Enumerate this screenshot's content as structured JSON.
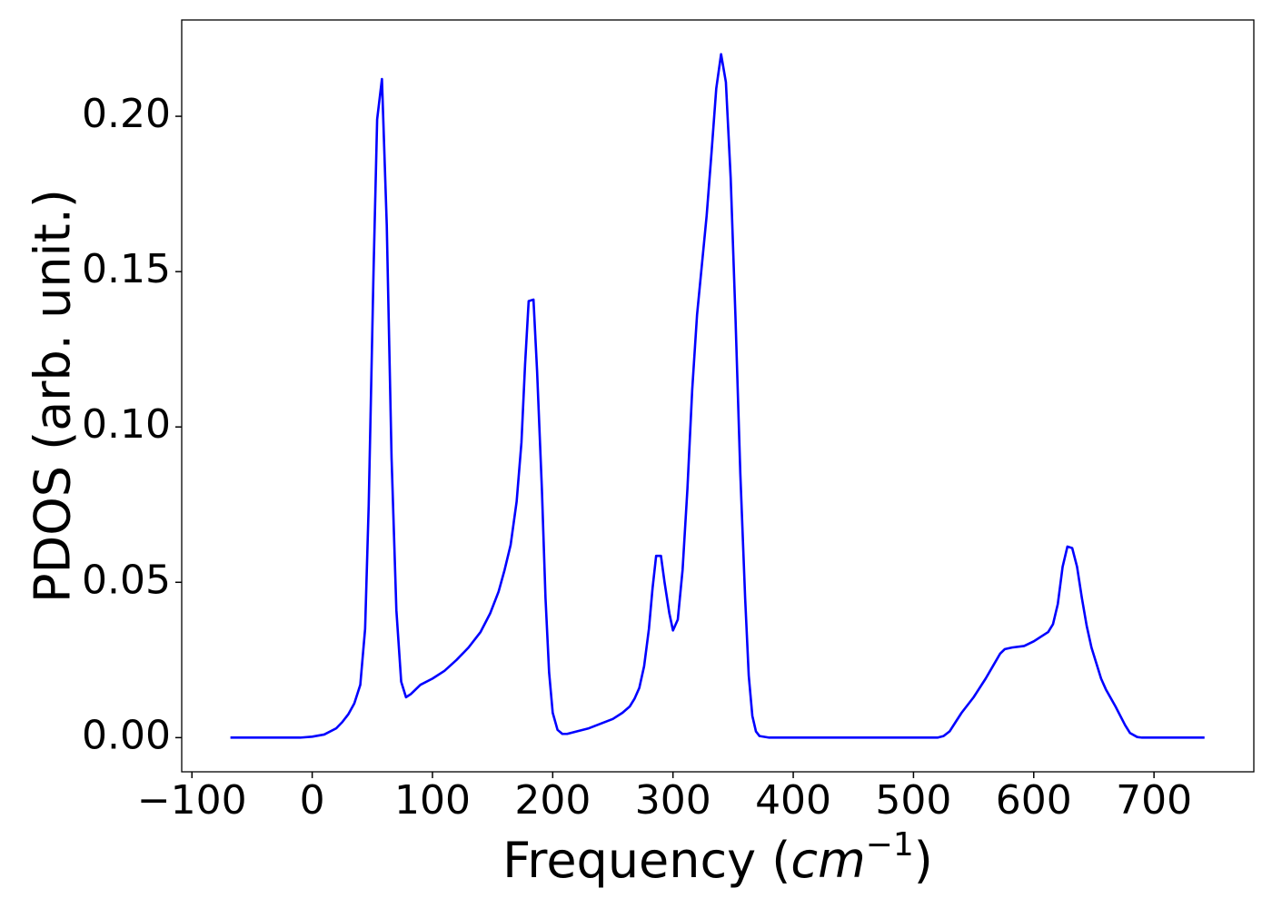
{
  "chart_data": {
    "type": "line",
    "y_label": "PDOS (arb. unit.)",
    "x_label": [
      "Frequency (",
      "cm",
      "−1",
      ")"
    ],
    "x": [
      -68,
      -40,
      -10,
      0,
      10,
      20,
      25,
      30,
      35,
      40,
      44,
      47,
      51,
      54,
      58,
      62,
      66,
      70,
      74,
      78,
      82,
      90,
      100,
      110,
      120,
      130,
      140,
      148,
      155,
      160,
      165,
      170,
      174,
      177,
      180,
      184,
      187,
      191,
      194,
      197,
      200,
      204,
      208,
      212,
      220,
      230,
      240,
      250,
      258,
      264,
      268,
      272,
      276,
      280,
      283,
      286,
      290,
      293,
      297,
      300,
      304,
      308,
      312,
      316,
      320,
      324,
      328,
      332,
      336,
      340,
      344,
      348,
      352,
      356,
      360,
      363,
      366,
      369,
      372,
      380,
      400,
      450,
      500,
      520,
      525,
      530,
      535,
      540,
      550,
      560,
      566,
      572,
      576,
      582,
      592,
      600,
      606,
      612,
      616,
      620,
      624,
      628,
      632,
      636,
      640,
      644,
      648,
      652,
      656,
      660,
      668,
      676,
      680,
      686,
      690,
      742
    ],
    "series": [
      {
        "color": "#0000ff",
        "values": [
          0,
          0,
          0,
          0.0003,
          0.001,
          0.003,
          0.005,
          0.0075,
          0.011,
          0.017,
          0.035,
          0.075,
          0.15,
          0.199,
          0.212,
          0.165,
          0.09,
          0.041,
          0.018,
          0.013,
          0.014,
          0.017,
          0.019,
          0.0215,
          0.025,
          0.029,
          0.034,
          0.04,
          0.047,
          0.054,
          0.062,
          0.076,
          0.095,
          0.12,
          0.1405,
          0.141,
          0.118,
          0.08,
          0.045,
          0.021,
          0.008,
          0.0025,
          0.0012,
          0.0012,
          0.002,
          0.003,
          0.0045,
          0.006,
          0.008,
          0.01,
          0.0125,
          0.016,
          0.023,
          0.035,
          0.048,
          0.0585,
          0.0585,
          0.05,
          0.04,
          0.0345,
          0.038,
          0.054,
          0.08,
          0.112,
          0.136,
          0.152,
          0.168,
          0.188,
          0.209,
          0.22,
          0.211,
          0.18,
          0.135,
          0.085,
          0.045,
          0.02,
          0.007,
          0.002,
          0.0005,
          0,
          0,
          0,
          0,
          0,
          0.0005,
          0.002,
          0.005,
          0.008,
          0.013,
          0.019,
          0.023,
          0.027,
          0.0285,
          0.029,
          0.0295,
          0.031,
          0.0325,
          0.034,
          0.0365,
          0.043,
          0.055,
          0.0615,
          0.061,
          0.055,
          0.045,
          0.036,
          0.029,
          0.024,
          0.019,
          0.0155,
          0.01,
          0.004,
          0.0015,
          0.0002,
          0,
          0
        ]
      }
    ],
    "xlim": [
      -108.5,
      783
    ],
    "ylim": [
      -0.011,
      0.231
    ],
    "xticks": [
      {
        "value": -100,
        "label": "−100"
      },
      0,
      100,
      200,
      300,
      400,
      500,
      600,
      700
    ],
    "yticks": [
      {
        "value": 0,
        "label": "0.00"
      },
      0.05,
      {
        "value": 0.1,
        "label": "0.10"
      },
      0.15,
      {
        "value": 0.2,
        "label": "0.20"
      }
    ]
  }
}
